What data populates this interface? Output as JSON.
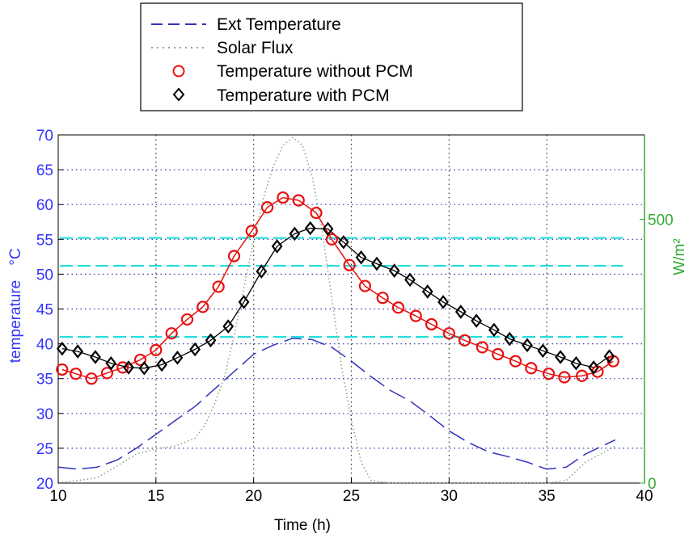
{
  "colors": {
    "left_axis": "#3333ff",
    "right_axis": "#33aa33",
    "ext": "#3333bb",
    "solar": "#88aa88",
    "without_pcm": "#e81010",
    "with_pcm": "#000000",
    "ref_lines": "#22dddd",
    "grid": "#3333aa"
  },
  "chart_data": {
    "type": "line",
    "xlabel": "Time (h)",
    "ylabel_left": "temperature",
    "ylabel_left_unit": "°C",
    "ylabel_right": "W/m²",
    "xlim": [
      10,
      40
    ],
    "ylim_left": [
      20,
      70
    ],
    "ylim_right": [
      0,
      660
    ],
    "x_ticks": [
      10,
      15,
      20,
      25,
      30,
      35,
      40
    ],
    "y_ticks_left": [
      20,
      25,
      30,
      35,
      40,
      45,
      50,
      55,
      60,
      65,
      70
    ],
    "y_ticks_right": [
      0,
      500
    ],
    "grid": true,
    "legend_position": "top-center",
    "series": [
      {
        "name": "Ext Temperature",
        "axis": "left",
        "style": "dashed",
        "x": [
          10,
          11,
          12,
          13,
          14,
          15,
          16,
          17,
          18,
          19,
          20,
          21,
          22,
          23,
          24,
          25,
          26,
          27,
          28,
          29,
          30,
          31,
          32,
          33,
          34,
          35,
          36,
          37,
          38.5
        ],
        "y": [
          22.3,
          22,
          22.3,
          23.3,
          25,
          27,
          29,
          31,
          33.5,
          36,
          38.5,
          39.8,
          40.8,
          40.6,
          39.5,
          37.5,
          35.3,
          33.3,
          31.8,
          29.7,
          27.5,
          25.8,
          24.5,
          23.8,
          23,
          22,
          22.3,
          24.2,
          26.2
        ]
      },
      {
        "name": "Solar Flux",
        "axis": "right",
        "style": "dotted",
        "x": [
          10,
          12,
          14,
          15,
          16,
          17,
          17.5,
          18,
          18.5,
          19,
          19.5,
          20,
          20.5,
          21,
          21.5,
          22,
          22.5,
          23,
          23.5,
          24,
          24.5,
          25,
          25.5,
          26,
          27,
          30,
          35,
          36,
          37,
          38.5
        ],
        "y": [
          0,
          10,
          55,
          65,
          70,
          85,
          110,
          150,
          200,
          280,
          370,
          460,
          540,
          600,
          640,
          655,
          640,
          580,
          480,
          350,
          220,
          120,
          40,
          5,
          0,
          0,
          0,
          5,
          40,
          70
        ]
      },
      {
        "name": "Temperature without PCM",
        "axis": "left",
        "style": "solid-circles",
        "x": [
          10.2,
          10.9,
          11.7,
          12.5,
          13.3,
          14.2,
          15,
          15.8,
          16.6,
          17.4,
          18.2,
          19,
          19.9,
          20.7,
          21.5,
          22.3,
          23.2,
          24,
          24.9,
          25.7,
          26.6,
          27.4,
          28.3,
          29.1,
          30,
          30.8,
          31.7,
          32.5,
          33.4,
          34.2,
          35.1,
          35.9,
          36.8,
          37.6,
          38.4
        ],
        "y": [
          36.3,
          35.7,
          35,
          35.8,
          36.6,
          37.7,
          39.1,
          41.5,
          43.5,
          45.3,
          48.2,
          52.6,
          56.2,
          59.6,
          61,
          60.6,
          58.8,
          55,
          51.3,
          48.3,
          46.6,
          45.2,
          44,
          42.8,
          41.5,
          40.5,
          39.5,
          38.5,
          37.5,
          36.5,
          35.7,
          35.2,
          35.4,
          36,
          37.5
        ]
      },
      {
        "name": "Temperature with PCM",
        "axis": "left",
        "style": "solid-diamonds",
        "x": [
          10.2,
          11,
          11.9,
          12.7,
          13.6,
          14.4,
          15.3,
          16.1,
          17,
          17.8,
          18.7,
          19.5,
          20.4,
          21.2,
          22.1,
          22.9,
          23.8,
          24.6,
          25.5,
          26.3,
          27.2,
          28,
          28.9,
          29.7,
          30.6,
          31.4,
          32.3,
          33.1,
          34,
          34.8,
          35.7,
          36.5,
          37.4,
          38.2
        ],
        "y": [
          39.3,
          38.9,
          38.1,
          37.2,
          36.6,
          36.5,
          37,
          38,
          39.2,
          40.5,
          42.5,
          46,
          50.4,
          54,
          55.8,
          56.6,
          56.5,
          54.6,
          52.4,
          51.5,
          50.5,
          49.2,
          47.5,
          46,
          44.6,
          43.3,
          42,
          40.7,
          39.8,
          39,
          38.1,
          37.2,
          36.6,
          38.2
        ]
      }
    ],
    "reference_lines": [
      {
        "axis": "left",
        "y": 55.2
      },
      {
        "axis": "left",
        "y": 51.2
      },
      {
        "axis": "left",
        "y": 41
      }
    ]
  }
}
